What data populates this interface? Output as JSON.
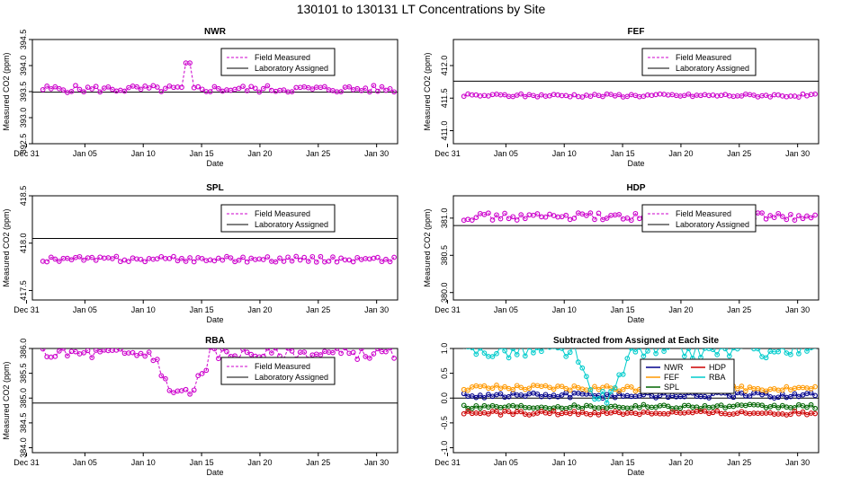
{
  "title": "130101  to  130131 LT Concentrations by Site",
  "colors": {
    "field": "#cc00cc",
    "assigned": "#000000",
    "NWR": "#00008b",
    "FEF": "#ff9900",
    "SPL": "#006400",
    "HDP": "#cc0000",
    "RBA": "#00cccc"
  },
  "chart_data": [
    {
      "type": "line",
      "title": "NWR",
      "xlabel": "Date",
      "ylabel": "Measured CO2 (ppm)",
      "xlim": [
        0.5,
        31.8
      ],
      "ylim": [
        392.5,
        394.5
      ],
      "yticks": [
        "392.5",
        "393.0",
        "393.5",
        "394.0",
        "394.5"
      ],
      "xtick_labels": [
        "Dec 31",
        "Jan 05",
        "Jan 10",
        "Jan 15",
        "Jan 20",
        "Jan 25",
        "Jan 30"
      ],
      "assigned": 393.49,
      "legend": [
        "Field Measured",
        "Laboratory Assigned"
      ],
      "series": [
        {
          "name": "Field Measured",
          "base": 393.55,
          "amp": 0.07,
          "spike_day": 13.7,
          "spike_value": 394.05
        }
      ]
    },
    {
      "type": "line",
      "title": "FEF",
      "xlabel": "Date",
      "ylabel": "Measured CO2 (ppm)",
      "xlim": [
        0.5,
        31.8
      ],
      "ylim": [
        410.8,
        412.4
      ],
      "yticks": [
        "411.0",
        "411.5",
        "412.0"
      ],
      "xtick_labels": [
        "Dec 31",
        "Jan 05",
        "Jan 10",
        "Jan 15",
        "Jan 20",
        "Jan 25",
        "Jan 30"
      ],
      "assigned": 411.76,
      "legend": [
        "Field Measured",
        "Laboratory Assigned"
      ],
      "series": [
        {
          "name": "Field Measured",
          "base": 411.54,
          "amp": 0.025
        }
      ]
    },
    {
      "type": "line",
      "title": "SPL",
      "xlabel": "Date",
      "ylabel": "Measured CO2 (ppm)",
      "xlim": [
        0.5,
        31.8
      ],
      "ylim": [
        417.4,
        418.5
      ],
      "yticks": [
        "417.5",
        "418.0",
        "418.5"
      ],
      "xtick_labels": [
        "Dec 31",
        "Jan 05",
        "Jan 10",
        "Jan 15",
        "Jan 20",
        "Jan 25",
        "Jan 30"
      ],
      "assigned": 418.05,
      "legend": [
        "Field Measured",
        "Laboratory Assigned"
      ],
      "series": [
        {
          "name": "Field Measured",
          "base": 417.83,
          "amp": 0.03
        }
      ]
    },
    {
      "type": "line",
      "title": "HDP",
      "xlabel": "Date",
      "ylabel": "Measured CO2 (ppm)",
      "xlim": [
        0.5,
        31.8
      ],
      "ylim": [
        379.9,
        381.3
      ],
      "yticks": [
        "380.0",
        "380.5",
        "381.0"
      ],
      "xtick_labels": [
        "Dec 31",
        "Jan 05",
        "Jan 10",
        "Jan 15",
        "Jan 20",
        "Jan 25",
        "Jan 30"
      ],
      "assigned": 380.9,
      "legend": [
        "Field Measured",
        "Laboratory Assigned"
      ],
      "series": [
        {
          "name": "Field Measured",
          "base": 381.02,
          "amp": 0.05
        }
      ]
    },
    {
      "type": "line",
      "title": "RBA",
      "xlabel": "Date",
      "ylabel": "Measured CO2 (ppm)",
      "xlim": [
        0.5,
        31.8
      ],
      "ylim": [
        383.9,
        386.0
      ],
      "yticks": [
        "384.0",
        "384.5",
        "385.0",
        "385.5",
        "386.0"
      ],
      "xtick_labels": [
        "Dec 31",
        "Jan 05",
        "Jan 10",
        "Jan 15",
        "Jan 20",
        "Jan 25",
        "Jan 30"
      ],
      "assigned": 384.9,
      "legend": [
        "Field Measured",
        "Laboratory Assigned"
      ],
      "series": [
        {
          "name": "Field Measured",
          "base": 385.9,
          "amp": 0.12,
          "dip_start": 10.8,
          "dip_end": 15.8,
          "dip_value": 385.1
        }
      ]
    },
    {
      "type": "line",
      "title": "Subtracted from Assigned at Each Site",
      "xlabel": "Date",
      "ylabel": "",
      "xlim": [
        0.5,
        31.8
      ],
      "ylim": [
        -1.1,
        1.0
      ],
      "yticks": [
        "-1.0",
        "-0.5",
        "0.0",
        "0.5",
        "1.0"
      ],
      "xtick_labels": [
        "Dec 31",
        "Jan 05",
        "Jan 10",
        "Jan 15",
        "Jan 20",
        "Jan 25",
        "Jan 30"
      ],
      "assigned": 0,
      "legend": [
        "NWR",
        "HDP",
        "FEF",
        "RBA",
        "SPL"
      ],
      "series": [
        {
          "name": "NWR",
          "base": 0.06,
          "amp": 0.06
        },
        {
          "name": "FEF",
          "base": 0.2,
          "amp": 0.06
        },
        {
          "name": "SPL",
          "base": -0.17,
          "amp": 0.04
        },
        {
          "name": "HDP",
          "base": -0.3,
          "amp": 0.04
        },
        {
          "name": "RBA",
          "base": 0.95,
          "amp": 0.15,
          "dip_start": 10.8,
          "dip_end": 15.8,
          "dip_value": 0.05
        }
      ]
    }
  ]
}
